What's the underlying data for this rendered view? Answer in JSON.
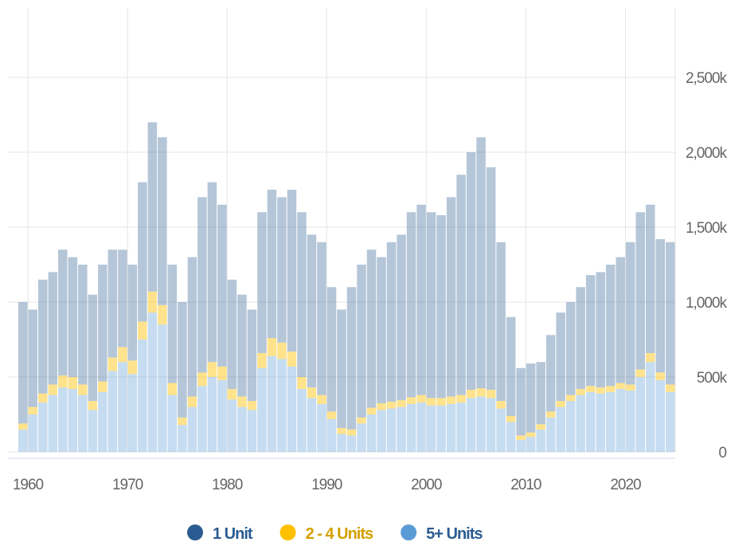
{
  "chart_data": {
    "type": "stacked-bar",
    "x": [
      1959,
      1960,
      1961,
      1962,
      1963,
      1964,
      1965,
      1966,
      1967,
      1968,
      1969,
      1970,
      1971,
      1972,
      1973,
      1974,
      1975,
      1976,
      1977,
      1978,
      1979,
      1980,
      1981,
      1982,
      1983,
      1984,
      1985,
      1986,
      1987,
      1988,
      1989,
      1990,
      1991,
      1992,
      1993,
      1994,
      1995,
      1996,
      1997,
      1998,
      1999,
      2000,
      2001,
      2002,
      2003,
      2004,
      2005,
      2006,
      2007,
      2008,
      2009,
      2010,
      2011,
      2012,
      2013,
      2014,
      2015,
      2016,
      2017,
      2018,
      2019,
      2020,
      2021,
      2022,
      2023,
      2024
    ],
    "xlim": [
      1958,
      2025
    ],
    "xticks": [
      1960,
      1970,
      1980,
      1990,
      2000,
      2010,
      2020
    ],
    "ylim": [
      0,
      3000
    ],
    "yticks": [
      0,
      {
        "value": 500,
        "label": "500k"
      },
      {
        "value": 1000,
        "label": "1,000k"
      },
      {
        "value": 1500,
        "label": "1,500k"
      },
      {
        "value": 2000,
        "label": "2,000k"
      },
      {
        "value": 2500,
        "label": "2,500k"
      }
    ],
    "grid": true,
    "legend": "bottom",
    "series": [
      {
        "name": "5+ Units",
        "color": "#5b9bd5",
        "values": [
          150,
          250,
          330,
          380,
          430,
          420,
          380,
          280,
          400,
          540,
          600,
          520,
          750,
          930,
          850,
          380,
          180,
          300,
          440,
          500,
          480,
          350,
          300,
          280,
          560,
          640,
          620,
          570,
          420,
          360,
          320,
          220,
          120,
          110,
          190,
          250,
          280,
          290,
          300,
          320,
          330,
          310,
          310,
          320,
          330,
          360,
          370,
          360,
          290,
          200,
          80,
          100,
          150,
          230,
          300,
          340,
          380,
          400,
          390,
          400,
          420,
          410,
          500,
          600,
          480,
          400
        ]
      },
      {
        "name": "2 - 4 Units",
        "color": "#ffc000",
        "values": [
          40,
          50,
          60,
          70,
          80,
          80,
          70,
          60,
          70,
          90,
          100,
          90,
          120,
          140,
          130,
          80,
          50,
          70,
          90,
          100,
          90,
          70,
          70,
          60,
          100,
          120,
          110,
          100,
          80,
          70,
          60,
          50,
          40,
          40,
          40,
          45,
          45,
          45,
          45,
          45,
          50,
          50,
          50,
          50,
          50,
          55,
          55,
          55,
          50,
          40,
          30,
          30,
          35,
          40,
          40,
          40,
          40,
          40,
          40,
          40,
          40,
          40,
          50,
          60,
          50,
          50
        ]
      },
      {
        "name": "1 Unit",
        "color": "#2a5c91",
        "values": [
          810,
          650,
          760,
          750,
          840,
          800,
          800,
          710,
          780,
          720,
          650,
          640,
          930,
          1130,
          1120,
          790,
          770,
          930,
          1170,
          1200,
          1080,
          730,
          680,
          610,
          940,
          990,
          970,
          1080,
          1100,
          1020,
          1020,
          830,
          790,
          950,
          1020,
          1055,
          975,
          1065,
          1105,
          1235,
          1270,
          1240,
          1220,
          1330,
          1470,
          1585,
          1675,
          1485,
          1060,
          660,
          450,
          460,
          415,
          510,
          590,
          620,
          680,
          740,
          770,
          810,
          840,
          950,
          1050,
          990,
          890,
          950
        ]
      }
    ]
  }
}
